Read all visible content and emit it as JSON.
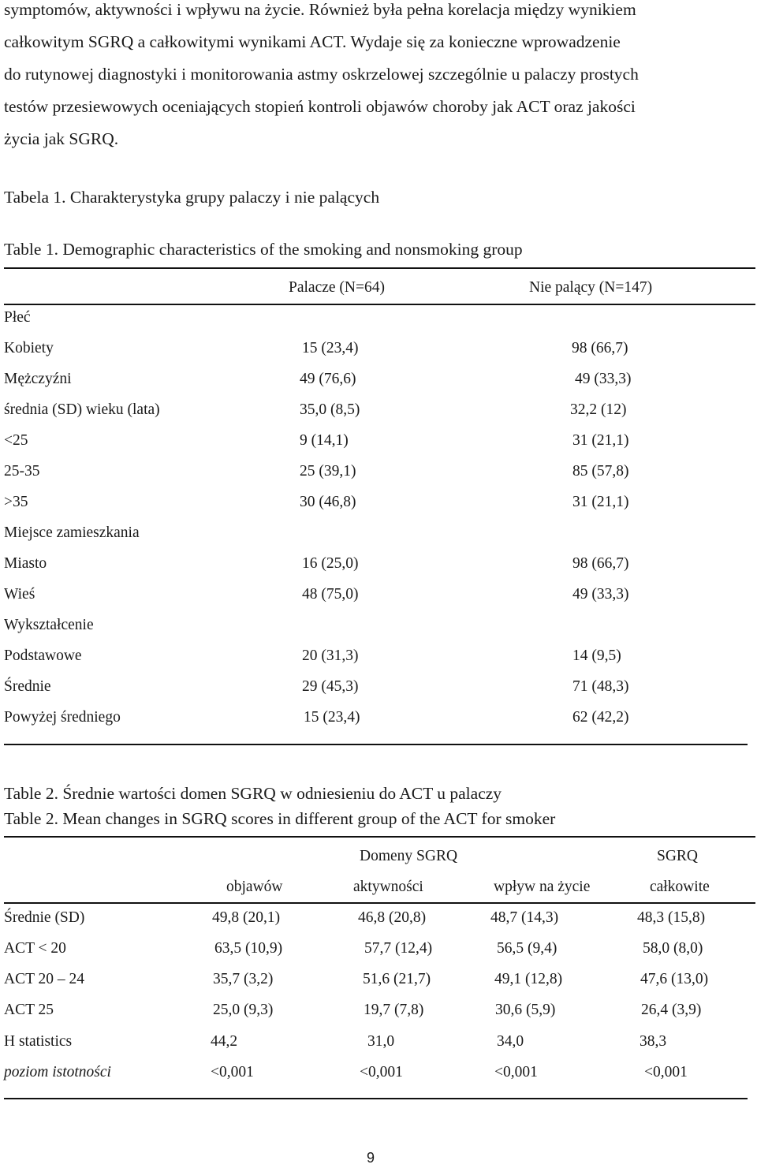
{
  "paragraph": {
    "lines": [
      "symptomów, aktywności i wpływu na życie. Również była pełna korelacja między wynikiem",
      "całkowitym SGRQ a całkowitymi wynikami ACT. Wydaje się za konieczne wprowadzenie",
      "do rutynowej diagnostyki i monitorowania astmy oskrzelowej szczególnie u palaczy prostych",
      "testów przesiewowych oceniających stopień kontroli objawów choroby jak ACT oraz jakości",
      "życia jak SGRQ."
    ]
  },
  "table1": {
    "caption_pl": "Tabela 1. Charakterystyka grupy palaczy i nie palących",
    "caption_en": "Table 1. Demographic characteristics of the smoking and nonsmoking group",
    "headers": [
      "Palacze (N=64)",
      "Nie palący (N=147)"
    ],
    "rows": [
      {
        "label": "Płeć",
        "smokers": "",
        "nonsmokers": ""
      },
      {
        "label": "Kobiety",
        "smokers": "15  (23,4)",
        "nonsmokers": "98  (66,7)"
      },
      {
        "label": "Mężczyźni",
        "smokers": "49  (76,6)",
        "nonsmokers": "49  (33,3)"
      },
      {
        "label": "średnia (SD) wieku (lata)",
        "smokers": "35,0  (8,5)",
        "nonsmokers": "32,2  (12)"
      },
      {
        "label": "<25",
        "smokers": "9  (14,1)",
        "nonsmokers": "31  (21,1)"
      },
      {
        "label": "25-35",
        "smokers": "25  (39,1)",
        "nonsmokers": "85  (57,8)"
      },
      {
        "label": ">35",
        "smokers": "30  (46,8)",
        "nonsmokers": "31  (21,1)"
      },
      {
        "label": "Miejsce zamieszkania",
        "smokers": "",
        "nonsmokers": ""
      },
      {
        "label": "Miasto",
        "smokers": "16  (25,0)",
        "nonsmokers": "98  (66,7)"
      },
      {
        "label": "Wieś",
        "smokers": "48  (75,0)",
        "nonsmokers": "49  (33,3)"
      },
      {
        "label": "Wykształcenie",
        "smokers": "",
        "nonsmokers": ""
      },
      {
        "label": "Podstawowe",
        "smokers": "20  (31,3)",
        "nonsmokers": "14  (9,5)"
      },
      {
        "label": "Średnie",
        "smokers": "29  (45,3)",
        "nonsmokers": "71  (48,3)"
      },
      {
        "label": "Powyżej średniego",
        "smokers": "15  (23,4)",
        "nonsmokers": "62  (42,2)"
      }
    ]
  },
  "table2": {
    "caption_pl": "Table 2. Średnie wartości domen SGRQ w odniesieniu do ACT u palaczy",
    "caption_en": "Table 2. Mean changes in SGRQ scores in different group of the ACT for  smoker",
    "group_header_domains": "Domeny  SGRQ",
    "group_header_sgrq": "SGRQ",
    "headers": [
      "objawów",
      "aktywności",
      "wpływ na życie",
      "całkowite"
    ],
    "rows": [
      {
        "label": "Średnie (SD)",
        "values": [
          "49,8  (20,1)",
          "46,8  (20,8)",
          "48,7  (14,3)",
          "48,3  (15,8)"
        ]
      },
      {
        "label": "ACT < 20",
        "values": [
          "63,5  (10,9)",
          "57,7  (12,4)",
          "56,5  (9,4)",
          "58,0  (8,0)"
        ]
      },
      {
        "label": "ACT 20 – 24",
        "values": [
          "35,7  (3,2)",
          "51,6  (21,7)",
          "49,1  (12,8)",
          "47,6  (13,0)"
        ]
      },
      {
        "label": "ACT 25",
        "values": [
          "25,0  (9,3)",
          "19,7  (7,8)",
          "30,6  (5,9)",
          "26,4  (3,9)"
        ]
      },
      {
        "label": "H statistics",
        "values": [
          "44,2",
          "31,0",
          "34,0",
          "38,3"
        ]
      },
      {
        "label": "poziom istotności",
        "values": [
          "<0,001",
          "<0,001",
          "<0,001",
          "<0,001"
        ]
      }
    ]
  },
  "page_number": "9"
}
